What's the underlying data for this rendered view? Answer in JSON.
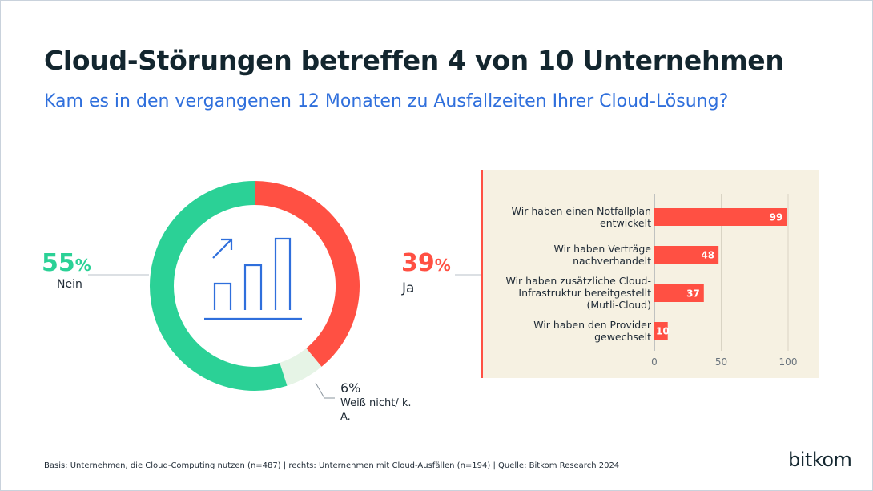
{
  "title": "Cloud-Störungen betreffen 4 von 10 Unternehmen",
  "subtitle": "Kam es in den vergangenen 12 Monaten zu Ausfallzeiten Ihrer Cloud-Lösung?",
  "footer": "Basis: Unternehmen, die Cloud-Computing nutzen (n=487) | rechts: Unternehmen mit Cloud-Ausfällen (n=194) | Quelle: Bitkom Research 2024",
  "logo": "bitkom",
  "chart_data": [
    {
      "type": "pie",
      "variant": "donut",
      "slices": [
        {
          "label": "Ja",
          "value": 39,
          "display": "39",
          "unit": "%",
          "color": "#ff5043"
        },
        {
          "label": "Weiß nicht/ k. A.",
          "value": 6,
          "display": "6%",
          "color": "#e6f4e6"
        },
        {
          "label": "Nein",
          "value": 55,
          "display": "55",
          "unit": "%",
          "color": "#2bd196"
        }
      ],
      "center_icon": "bar-chart-growth-icon"
    },
    {
      "type": "bar",
      "orientation": "horizontal",
      "categories": [
        "Wir haben einen Notfallplan entwickelt",
        "Wir haben Verträge nachverhandelt",
        "Wir haben zusätzliche Cloud-Infrastruktur bereitgestellt (Mutli-Cloud)",
        "Wir haben den Provider gewechselt"
      ],
      "values": [
        99,
        48,
        37,
        10
      ],
      "xlim": [
        0,
        100
      ],
      "xticks": [
        "0",
        "50",
        "100"
      ],
      "grid": true,
      "bar_color": "#ff5043",
      "background_color": "#f6f1e2"
    }
  ]
}
